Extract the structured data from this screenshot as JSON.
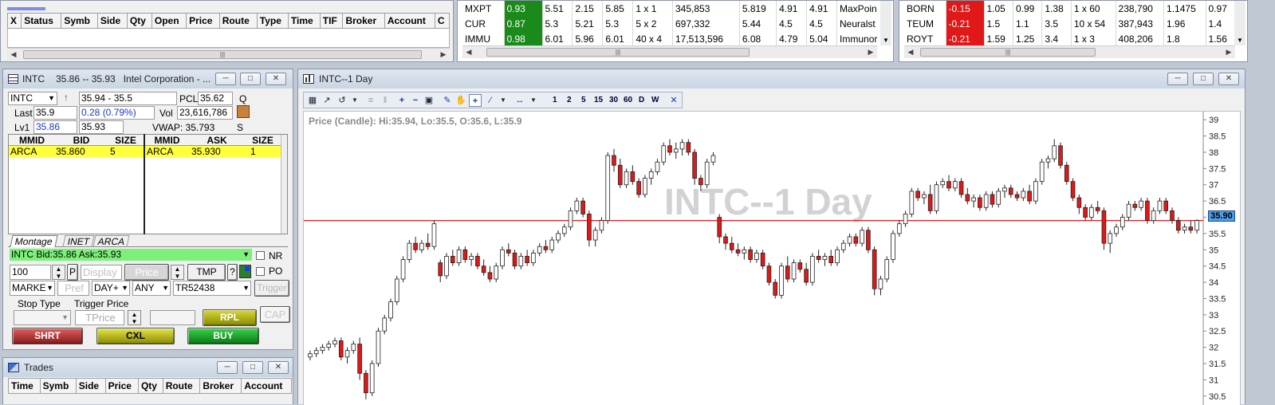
{
  "orders": {
    "columns": [
      "X",
      "Status",
      "Symb",
      "Side",
      "Qty",
      "Open",
      "Price",
      "Route",
      "Type",
      "Time",
      "TIF",
      "Broker",
      "Account",
      "C"
    ]
  },
  "scanner_mid": {
    "rows": [
      {
        "sym": "MXPT",
        "chg": "0.93",
        "c3": "5.51",
        "c4": "2.15",
        "c5": "5.85",
        "c6": "1 x 1",
        "c7": "345,853",
        "c8": "5.819",
        "c9": "4.91",
        "c10": "4.91",
        "name": "MaxPoin"
      },
      {
        "sym": "CUR",
        "chg": "0.87",
        "c3": "5.3",
        "c4": "5.21",
        "c5": "5.3",
        "c6": "5 x 2",
        "c7": "697,332",
        "c8": "5.44",
        "c9": "4.5",
        "c10": "4.5",
        "name": "Neuralst"
      },
      {
        "sym": "IMMU",
        "chg": "0.98",
        "c3": "6.01",
        "c4": "5.96",
        "c5": "6.01",
        "c6": "40 x 4",
        "c7": "17,513,596",
        "c8": "6.08",
        "c9": "4.79",
        "c10": "5.04",
        "name": "Immunor"
      }
    ]
  },
  "scanner_right": {
    "rows": [
      {
        "sym": "BORN",
        "chg": "-0.15",
        "c3": "1.05",
        "c4": "0.99",
        "c5": "1.38",
        "c6": "1 x 60",
        "c7": "238,790",
        "c8": "1.1475",
        "c9": "0.97"
      },
      {
        "sym": "TEUM",
        "chg": "-0.21",
        "c3": "1.5",
        "c4": "1.1",
        "c5": "3.5",
        "c6": "10 x 54",
        "c7": "387,943",
        "c8": "1.96",
        "c9": "1.4"
      },
      {
        "sym": "ROYT",
        "chg": "-0.21",
        "c3": "1.59",
        "c4": "1.25",
        "c5": "3.4",
        "c6": "1 x 3",
        "c7": "408,206",
        "c8": "1.8",
        "c9": "1.56"
      }
    ]
  },
  "montage": {
    "title_sym": "INTC",
    "title_range": "35.86 -- 35.93",
    "title_name": "Intel Corporation - ...",
    "symbol": "INTC",
    "range": "35.94 - 35.5",
    "pcl_label": "PCL",
    "pcl": "35.62",
    "q": "Q",
    "last_label": "Last",
    "last": "35.9",
    "change": "0.28  (0.79%)",
    "vol_label": "Vol",
    "vol": "23,616,786",
    "lv1_label": "Lv1",
    "lv1_bid": "35.86",
    "lv1_ask": "35.93",
    "vwap": "VWAP: 35.793",
    "s": "S",
    "bid_headers": [
      "MMID",
      "BID",
      "SIZE"
    ],
    "ask_headers": [
      "MMID",
      "ASK",
      "SIZE"
    ],
    "bid_row": {
      "mmid": "ARCA",
      "price": "35.860",
      "size": "5"
    },
    "ask_row": {
      "mmid": "ARCA",
      "price": "35.930",
      "size": "1"
    },
    "tabs": [
      "Montage",
      "INET",
      "ARCA"
    ],
    "status_bar": "INTC Bid:35.86 Ask:35.93",
    "qty": "100",
    "p": "P",
    "display": "Display",
    "price_ph": "Price",
    "tmp": "TMP",
    "q_mark": "?",
    "nr": "NR",
    "po": "PO",
    "order_type": "MARKE",
    "pref": "Pref",
    "tif": "DAY+",
    "any": "ANY",
    "account": "TR52438",
    "trigger": "Trigger",
    "stop_type": "Stop Type",
    "trigger_price": "Trigger Price",
    "tprice": "TPrice",
    "rpl": "RPL",
    "cap": "CAP",
    "shrt": "SHRT",
    "cxl": "CXL",
    "buy": "BUY"
  },
  "trades": {
    "title": "Trades",
    "columns": [
      "Time",
      "Symb",
      "Side",
      "Price",
      "Qty",
      "Route",
      "Broker",
      "Account"
    ]
  },
  "chart_window": {
    "title": "INTC--1 Day",
    "toolbar_text": [
      "1",
      "2",
      "5",
      "15",
      "30",
      "60",
      "D",
      "W"
    ]
  },
  "chart_data": {
    "type": "candlestick",
    "title": "INTC--1 Day",
    "subtitle": "Price (Candle): Hi:35.94, Lo:35.5, O:35.6, L:35.9",
    "ylim": [
      30.2,
      39.25
    ],
    "yticks": [
      "30.5",
      "31",
      "31.5",
      "32",
      "32.5",
      "33",
      "33.5",
      "34",
      "34.5",
      "35",
      "35.5",
      "36",
      "36.5",
      "37",
      "37.5",
      "38",
      "38.5",
      "39"
    ],
    "last_price": "35.90",
    "price_line": 35.9,
    "candles": [
      [
        31.7,
        31.9,
        31.6,
        31.8
      ],
      [
        31.8,
        32.0,
        31.7,
        31.9
      ],
      [
        31.9,
        32.1,
        31.8,
        32.0
      ],
      [
        32.0,
        32.2,
        31.9,
        32.1
      ],
      [
        32.1,
        32.3,
        32.0,
        32.2
      ],
      [
        32.2,
        32.3,
        31.6,
        31.7
      ],
      [
        31.7,
        32.0,
        31.5,
        31.9
      ],
      [
        31.9,
        32.2,
        31.8,
        32.1
      ],
      [
        32.1,
        32.3,
        31.0,
        31.2
      ],
      [
        31.2,
        31.3,
        30.4,
        30.6
      ],
      [
        30.6,
        31.6,
        30.5,
        31.5
      ],
      [
        31.5,
        32.6,
        31.4,
        32.5
      ],
      [
        32.5,
        33.0,
        32.4,
        32.9
      ],
      [
        32.9,
        33.5,
        32.8,
        33.4
      ],
      [
        33.4,
        34.2,
        33.3,
        34.1
      ],
      [
        34.1,
        34.8,
        34.0,
        34.7
      ],
      [
        34.7,
        35.3,
        34.6,
        35.2
      ],
      [
        35.2,
        35.4,
        34.9,
        35.0
      ],
      [
        35.0,
        35.3,
        34.9,
        35.2
      ],
      [
        35.2,
        35.5,
        35.0,
        35.1
      ],
      [
        35.1,
        35.9,
        35.0,
        35.8
      ],
      [
        34.6,
        34.7,
        34.0,
        34.2
      ],
      [
        34.2,
        34.9,
        34.1,
        34.8
      ],
      [
        34.8,
        35.0,
        34.5,
        34.6
      ],
      [
        34.6,
        35.1,
        34.5,
        35.0
      ],
      [
        35.0,
        35.1,
        34.6,
        34.7
      ],
      [
        34.7,
        34.9,
        34.5,
        34.8
      ],
      [
        34.8,
        34.9,
        34.4,
        34.5
      ],
      [
        34.5,
        34.7,
        34.2,
        34.3
      ],
      [
        34.3,
        34.5,
        34.0,
        34.1
      ],
      [
        34.1,
        34.6,
        34.0,
        34.5
      ],
      [
        34.5,
        35.1,
        34.4,
        35.0
      ],
      [
        35.0,
        35.2,
        34.8,
        34.9
      ],
      [
        34.9,
        35.0,
        34.4,
        34.5
      ],
      [
        34.5,
        34.9,
        34.4,
        34.8
      ],
      [
        34.8,
        35.0,
        34.5,
        34.6
      ],
      [
        34.6,
        35.0,
        34.5,
        34.9
      ],
      [
        34.9,
        35.2,
        34.8,
        35.1
      ],
      [
        35.1,
        35.3,
        34.9,
        35.0
      ],
      [
        35.0,
        35.4,
        34.9,
        35.3
      ],
      [
        35.3,
        35.6,
        35.2,
        35.5
      ],
      [
        35.5,
        35.8,
        35.4,
        35.7
      ],
      [
        35.7,
        36.3,
        35.6,
        36.2
      ],
      [
        36.2,
        36.6,
        36.1,
        36.5
      ],
      [
        36.5,
        36.6,
        36.0,
        36.1
      ],
      [
        36.1,
        36.2,
        35.1,
        35.3
      ],
      [
        35.3,
        35.7,
        35.1,
        35.6
      ],
      [
        35.6,
        36.0,
        35.5,
        35.9
      ],
      [
        35.9,
        38.0,
        35.8,
        37.9
      ],
      [
        37.9,
        38.1,
        37.4,
        37.6
      ],
      [
        37.6,
        37.8,
        36.9,
        37.0
      ],
      [
        37.0,
        37.5,
        36.9,
        37.4
      ],
      [
        37.4,
        37.6,
        37.0,
        37.1
      ],
      [
        37.1,
        37.2,
        36.6,
        36.7
      ],
      [
        36.7,
        37.3,
        36.6,
        37.2
      ],
      [
        37.2,
        37.5,
        37.0,
        37.4
      ],
      [
        37.4,
        37.8,
        37.3,
        37.7
      ],
      [
        37.7,
        38.3,
        37.6,
        38.2
      ],
      [
        38.2,
        38.4,
        37.9,
        38.0
      ],
      [
        38.0,
        38.3,
        37.8,
        38.1
      ],
      [
        38.1,
        38.4,
        37.9,
        38.3
      ],
      [
        38.3,
        38.4,
        37.9,
        38.0
      ],
      [
        38.0,
        38.1,
        37.0,
        37.2
      ],
      [
        37.2,
        37.3,
        36.8,
        37.0
      ],
      [
        37.0,
        37.8,
        36.9,
        37.7
      ],
      [
        37.7,
        38.0,
        37.6,
        37.9
      ],
      [
        36.0,
        36.1,
        35.2,
        35.4
      ],
      [
        35.4,
        35.5,
        35.0,
        35.2
      ],
      [
        35.2,
        35.4,
        34.9,
        35.0
      ],
      [
        35.0,
        35.2,
        34.8,
        34.9
      ],
      [
        34.9,
        35.1,
        34.7,
        35.0
      ],
      [
        35.0,
        35.1,
        34.6,
        34.7
      ],
      [
        34.7,
        35.0,
        34.6,
        34.9
      ],
      [
        34.9,
        35.0,
        34.4,
        34.5
      ],
      [
        34.5,
        34.6,
        33.9,
        34.0
      ],
      [
        34.0,
        34.1,
        33.5,
        33.6
      ],
      [
        33.6,
        34.6,
        33.5,
        34.5
      ],
      [
        34.5,
        34.8,
        34.0,
        34.1
      ],
      [
        34.1,
        34.7,
        34.0,
        34.6
      ],
      [
        34.6,
        34.7,
        34.3,
        34.4
      ],
      [
        34.4,
        34.6,
        33.9,
        34.0
      ],
      [
        34.0,
        34.9,
        33.9,
        34.8
      ],
      [
        34.8,
        35.0,
        34.6,
        34.7
      ],
      [
        34.7,
        34.9,
        34.5,
        34.8
      ],
      [
        34.8,
        35.0,
        34.5,
        34.6
      ],
      [
        34.6,
        35.1,
        34.5,
        35.0
      ],
      [
        35.0,
        35.3,
        34.9,
        35.2
      ],
      [
        35.2,
        35.5,
        35.1,
        35.4
      ],
      [
        35.4,
        35.5,
        35.1,
        35.2
      ],
      [
        35.2,
        35.7,
        35.1,
        35.6
      ],
      [
        35.6,
        35.7,
        34.9,
        35.0
      ],
      [
        35.0,
        35.1,
        33.6,
        33.8
      ],
      [
        33.8,
        34.2,
        33.6,
        34.1
      ],
      [
        34.1,
        34.8,
        34.0,
        34.7
      ],
      [
        34.7,
        35.6,
        34.6,
        35.5
      ],
      [
        35.5,
        35.9,
        35.4,
        35.8
      ],
      [
        35.8,
        36.2,
        35.7,
        36.1
      ],
      [
        36.1,
        36.9,
        36.0,
        36.8
      ],
      [
        36.8,
        36.9,
        36.5,
        36.6
      ],
      [
        36.6,
        36.8,
        36.4,
        36.7
      ],
      [
        36.7,
        37.0,
        36.1,
        36.2
      ],
      [
        36.2,
        37.1,
        36.1,
        37.0
      ],
      [
        37.0,
        37.2,
        36.9,
        37.1
      ],
      [
        37.1,
        37.3,
        36.8,
        36.9
      ],
      [
        36.9,
        37.2,
        36.8,
        37.1
      ],
      [
        37.1,
        37.2,
        36.6,
        36.7
      ],
      [
        36.7,
        36.9,
        36.4,
        36.5
      ],
      [
        36.5,
        36.7,
        36.3,
        36.6
      ],
      [
        36.6,
        36.7,
        36.2,
        36.3
      ],
      [
        36.3,
        36.8,
        36.2,
        36.7
      ],
      [
        36.7,
        36.8,
        36.3,
        36.4
      ],
      [
        36.4,
        36.9,
        36.3,
        36.8
      ],
      [
        36.8,
        37.0,
        36.6,
        36.9
      ],
      [
        36.9,
        37.0,
        36.6,
        36.7
      ],
      [
        36.7,
        36.8,
        36.5,
        36.6
      ],
      [
        36.6,
        36.9,
        36.5,
        36.8
      ],
      [
        36.8,
        37.0,
        36.4,
        36.5
      ],
      [
        36.5,
        37.2,
        36.4,
        37.1
      ],
      [
        37.1,
        37.8,
        37.0,
        37.7
      ],
      [
        37.7,
        37.9,
        37.5,
        37.8
      ],
      [
        37.8,
        38.4,
        37.7,
        38.2
      ],
      [
        38.2,
        38.3,
        37.5,
        37.6
      ],
      [
        37.6,
        37.7,
        37.0,
        37.1
      ],
      [
        37.1,
        37.2,
        36.5,
        36.6
      ],
      [
        36.6,
        36.7,
        36.1,
        36.3
      ],
      [
        36.3,
        36.4,
        35.9,
        36.0
      ],
      [
        36.0,
        36.4,
        35.9,
        36.3
      ],
      [
        36.3,
        36.5,
        36.1,
        36.2
      ],
      [
        36.2,
        36.3,
        35.0,
        35.2
      ],
      [
        35.2,
        35.6,
        34.9,
        35.5
      ],
      [
        35.5,
        35.8,
        35.4,
        35.7
      ],
      [
        35.7,
        36.1,
        35.6,
        36.0
      ],
      [
        36.0,
        36.5,
        35.9,
        36.4
      ],
      [
        36.4,
        36.5,
        36.2,
        36.3
      ],
      [
        36.3,
        36.6,
        36.2,
        36.5
      ],
      [
        36.5,
        36.6,
        35.8,
        35.9
      ],
      [
        35.9,
        36.3,
        35.8,
        36.2
      ],
      [
        36.2,
        36.6,
        36.1,
        36.5
      ],
      [
        36.5,
        36.6,
        36.1,
        36.2
      ],
      [
        36.2,
        36.3,
        35.8,
        35.9
      ],
      [
        35.9,
        36.0,
        35.5,
        35.6
      ],
      [
        35.6,
        35.8,
        35.5,
        35.7
      ],
      [
        35.7,
        35.9,
        35.5,
        35.6
      ],
      [
        35.6,
        35.94,
        35.5,
        35.9
      ]
    ]
  }
}
